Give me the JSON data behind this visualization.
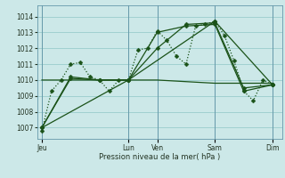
{
  "bg_color": "#cce8e8",
  "grid_color": "#99cccc",
  "line_color": "#1a5218",
  "xlabel": "Pression niveau de la mer( hPa )",
  "ylim": [
    1006.3,
    1014.7
  ],
  "yticks": [
    1007,
    1008,
    1009,
    1010,
    1011,
    1012,
    1013,
    1014
  ],
  "xtick_labels": [
    "Jeu",
    "Lun",
    "Ven",
    "Sam",
    "Dim"
  ],
  "xtick_positions": [
    0,
    9,
    12,
    18,
    24
  ],
  "vlines": [
    0,
    9,
    12,
    18,
    24
  ],
  "xlim": [
    -0.5,
    25.0
  ],
  "series": [
    {
      "x": [
        0,
        1,
        2,
        3,
        4,
        5,
        6,
        7,
        8,
        9,
        10,
        11,
        12,
        13,
        14,
        15,
        16,
        17,
        18,
        19,
        20,
        21,
        22,
        23,
        24
      ],
      "y": [
        1006.8,
        1009.3,
        1010.0,
        1011.0,
        1011.1,
        1010.2,
        1010.0,
        1009.3,
        1010.0,
        1010.0,
        1011.9,
        1012.0,
        1013.1,
        1012.5,
        1011.5,
        1011.0,
        1013.4,
        1013.5,
        1013.7,
        1012.8,
        1011.2,
        1009.3,
        1008.7,
        1010.0,
        1009.7
      ],
      "style": "dotted",
      "marker": "D",
      "markersize": 2.5,
      "linewidth": 0.9,
      "zorder": 4
    },
    {
      "x": [
        0,
        3,
        6,
        9,
        12,
        15,
        18,
        21,
        24
      ],
      "y": [
        1007.0,
        1010.2,
        1010.0,
        1010.0,
        1012.0,
        1013.5,
        1013.6,
        1009.5,
        1009.7
      ],
      "style": "solid",
      "marker": "D",
      "markersize": 2.5,
      "linewidth": 0.9,
      "zorder": 3
    },
    {
      "x": [
        0,
        3,
        6,
        9,
        12,
        15,
        18,
        21,
        24
      ],
      "y": [
        1007.0,
        1010.1,
        1010.0,
        1010.0,
        1013.0,
        1013.4,
        1013.5,
        1009.3,
        1009.7
      ],
      "style": "solid",
      "marker": "D",
      "markersize": 2.5,
      "linewidth": 0.9,
      "zorder": 3
    },
    {
      "x": [
        0,
        9,
        18,
        24
      ],
      "y": [
        1007.0,
        1010.0,
        1013.7,
        1009.7
      ],
      "style": "solid",
      "marker": "D",
      "markersize": 2.5,
      "linewidth": 0.9,
      "zorder": 3
    },
    {
      "x": [
        0,
        9,
        12,
        15,
        18,
        19,
        20,
        21,
        22,
        23,
        24
      ],
      "y": [
        1010.0,
        1010.0,
        1010.0,
        1009.9,
        1009.8,
        1009.8,
        1009.8,
        1009.8,
        1009.8,
        1009.8,
        1009.8
      ],
      "style": "solid",
      "marker": null,
      "markersize": 0,
      "linewidth": 0.9,
      "zorder": 3
    }
  ]
}
